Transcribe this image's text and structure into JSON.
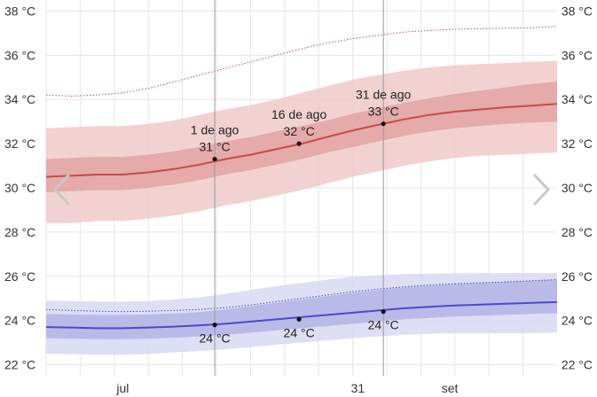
{
  "chart_data": {
    "type": "area",
    "title": "",
    "xlabel": "",
    "ylabel": "",
    "ylim": [
      21.5,
      38.5
    ],
    "y_ticks": [
      "22 °C",
      "24 °C",
      "26 °C",
      "28 °C",
      "30 °C",
      "32 °C",
      "34 °C",
      "36 °C",
      "38 °C"
    ],
    "y_tick_values": [
      22,
      24,
      26,
      28,
      30,
      32,
      34,
      36,
      38
    ],
    "x_range": [
      0,
      100
    ],
    "x_tick_labels": [
      {
        "label": "jul",
        "x": 15
      },
      {
        "label": "31",
        "x": 61
      },
      {
        "label": "set",
        "x": 79
      }
    ],
    "grid": true,
    "colors": {
      "high_line": "#c94a4a",
      "high_band_outer": "#f0c9c9",
      "high_band_inner": "#e3a3a3",
      "low_line": "#4a4ac9",
      "low_band_outer": "#d8d8f2",
      "low_band_inner": "#b4b4e6",
      "grid": "#e6e6e6",
      "vline": "#999999"
    },
    "series": [
      {
        "name": "",
        "role": "high_median",
        "x": [
          0,
          5,
          10,
          15,
          20,
          25,
          30,
          35,
          40,
          45,
          50,
          55,
          60,
          65,
          70,
          75,
          80,
          85,
          90,
          95,
          100
        ],
        "values": [
          30.5,
          30.55,
          30.6,
          30.6,
          30.7,
          30.85,
          31.05,
          31.3,
          31.5,
          31.75,
          32.0,
          32.3,
          32.6,
          32.85,
          33.1,
          33.3,
          33.45,
          33.55,
          33.65,
          33.72,
          33.8
        ],
        "band_inner_low": [
          29.8,
          29.85,
          29.9,
          29.9,
          30.0,
          30.15,
          30.35,
          30.6,
          30.8,
          31.05,
          31.3,
          31.6,
          31.85,
          32.1,
          32.35,
          32.55,
          32.7,
          32.8,
          32.9,
          32.95,
          33.0
        ],
        "band_inner_high": [
          31.3,
          31.35,
          31.4,
          31.4,
          31.5,
          31.65,
          31.85,
          32.1,
          32.3,
          32.55,
          32.8,
          33.05,
          33.35,
          33.6,
          33.85,
          34.05,
          34.25,
          34.4,
          34.55,
          34.7,
          34.8
        ],
        "band_outer_low": [
          28.4,
          28.4,
          28.5,
          28.5,
          28.6,
          28.75,
          28.95,
          29.2,
          29.4,
          29.65,
          29.9,
          30.2,
          30.5,
          30.75,
          31.0,
          31.2,
          31.35,
          31.45,
          31.5,
          31.55,
          31.6
        ],
        "band_outer_high": [
          32.7,
          32.75,
          32.8,
          32.8,
          32.9,
          33.05,
          33.3,
          33.55,
          33.75,
          34.0,
          34.3,
          34.6,
          34.9,
          35.1,
          35.3,
          35.45,
          35.55,
          35.6,
          35.65,
          35.7,
          35.75
        ]
      },
      {
        "name": "",
        "role": "high_record",
        "x": [
          0,
          5,
          10,
          15,
          20,
          25,
          30,
          35,
          40,
          45,
          50,
          55,
          60,
          65,
          70,
          75,
          80,
          85,
          90,
          95,
          100
        ],
        "values": [
          34.2,
          34.15,
          34.2,
          34.3,
          34.5,
          34.8,
          35.1,
          35.4,
          35.7,
          36.0,
          36.3,
          36.55,
          36.75,
          36.9,
          37.05,
          37.12,
          37.18,
          37.2,
          37.22,
          37.25,
          37.3
        ]
      },
      {
        "name": "",
        "role": "low_median",
        "x": [
          0,
          5,
          10,
          15,
          20,
          25,
          30,
          35,
          40,
          45,
          50,
          55,
          60,
          65,
          70,
          75,
          80,
          85,
          90,
          95,
          100
        ],
        "values": [
          23.7,
          23.68,
          23.65,
          23.65,
          23.68,
          23.72,
          23.78,
          23.85,
          23.95,
          24.05,
          24.15,
          24.25,
          24.35,
          24.45,
          24.55,
          24.62,
          24.68,
          24.72,
          24.76,
          24.8,
          24.83
        ],
        "band_inner_low": [
          23.2,
          23.18,
          23.15,
          23.15,
          23.18,
          23.22,
          23.28,
          23.35,
          23.45,
          23.55,
          23.65,
          23.75,
          23.85,
          23.95,
          24.05,
          24.12,
          24.18,
          24.22,
          24.26,
          24.3,
          24.33
        ],
        "band_inner_high": [
          24.3,
          24.28,
          24.25,
          24.25,
          24.28,
          24.32,
          24.38,
          24.5,
          24.65,
          24.8,
          24.95,
          25.1,
          25.25,
          25.38,
          25.5,
          25.58,
          25.65,
          25.7,
          25.75,
          25.8,
          25.85
        ],
        "band_outer_low": [
          22.5,
          22.48,
          22.45,
          22.45,
          22.48,
          22.55,
          22.62,
          22.7,
          22.8,
          22.9,
          23.0,
          23.1,
          23.2,
          23.28,
          23.35,
          23.4,
          23.42,
          23.42,
          23.43,
          23.43,
          23.45
        ],
        "band_outer_high": [
          24.9,
          24.88,
          24.85,
          24.85,
          24.88,
          24.95,
          25.05,
          25.2,
          25.38,
          25.55,
          25.7,
          25.85,
          25.98,
          26.05,
          26.1,
          26.12,
          26.13,
          26.14,
          26.15,
          26.15,
          26.15
        ]
      },
      {
        "name": "",
        "role": "low_record",
        "x": [
          0,
          5,
          10,
          15,
          20,
          25,
          30,
          35,
          40,
          45,
          50,
          55,
          60,
          65,
          70,
          75,
          80,
          85,
          90,
          95,
          100
        ],
        "values": [
          24.5,
          24.45,
          24.42,
          24.4,
          24.42,
          24.45,
          24.5,
          24.58,
          24.7,
          24.85,
          25.0,
          25.15,
          25.3,
          25.42,
          25.52,
          25.6,
          25.66,
          25.7,
          25.75,
          25.8,
          25.85
        ]
      }
    ],
    "annotations": [
      {
        "x": 33,
        "y": 31.3,
        "date": "1 de ago",
        "value": "31 °C",
        "placement": "above"
      },
      {
        "x": 49.5,
        "y": 32.0,
        "date": "16 de ago",
        "value": "32 °C",
        "placement": "above"
      },
      {
        "x": 66,
        "y": 32.9,
        "date": "31 de ago",
        "value": "33 °C",
        "placement": "above"
      },
      {
        "x": 33,
        "y": 23.8,
        "date": "",
        "value": "24 °C",
        "placement": "below"
      },
      {
        "x": 49.5,
        "y": 24.05,
        "date": "",
        "value": "24 °C",
        "placement": "below"
      },
      {
        "x": 66,
        "y": 24.4,
        "date": "",
        "value": "24 °C",
        "placement": "below"
      }
    ],
    "vertical_lines": [
      33,
      66
    ]
  },
  "nav": {
    "prev_icon": "chevron-left-icon",
    "next_icon": "chevron-right-icon"
  }
}
